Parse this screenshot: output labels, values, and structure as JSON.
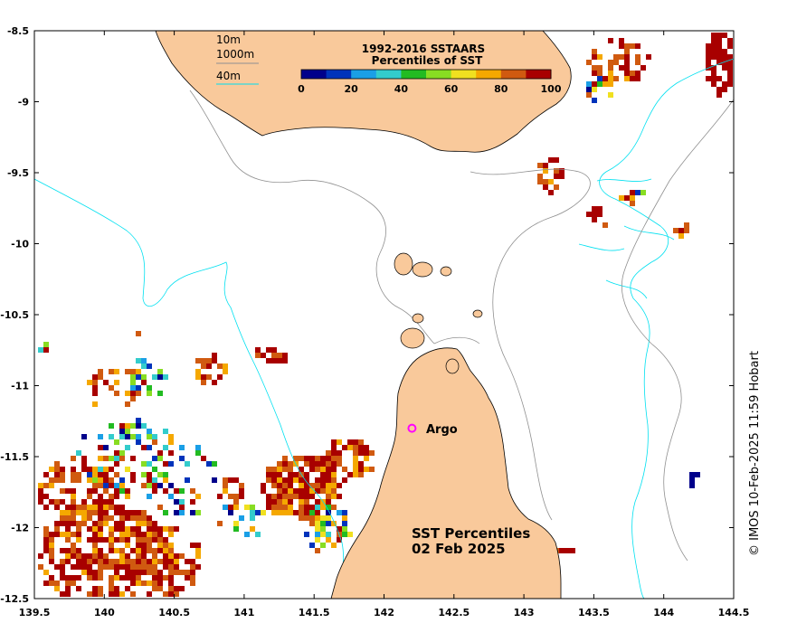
{
  "map": {
    "title_line1": "SST Percentiles",
    "title_line2": "02 Feb 2025",
    "credit": "© IMOS 10-Feb-2025 11:59 Hobart",
    "marker_label": "Argo",
    "colors": {
      "land": "#f9c99b",
      "isobath_10m": "#808080",
      "isobath_1000m": "#808080",
      "isobath_40m": "#00e0f0",
      "coast": "#000000",
      "argo_marker": "#ff00ff"
    },
    "lon_ticks": [
      "139.5",
      "140",
      "140.5",
      "141",
      "141.5",
      "142",
      "142.5",
      "143",
      "143.5",
      "144",
      "144.5"
    ],
    "lat_ticks": [
      "-8.5",
      "-9",
      "-9.5",
      "-10",
      "-10.5",
      "-11",
      "-11.5",
      "-12",
      "-12.5"
    ],
    "lon_range": [
      139.5,
      144.5
    ],
    "lat_range": [
      -12.5,
      -8.5
    ],
    "argo": {
      "lon": 142.2,
      "lat": -11.3
    }
  },
  "legend": {
    "title_line1": "1992-2016 SSTAARS",
    "title_line2": "Percentiles of SST",
    "ticks": [
      "0",
      "20",
      "40",
      "60",
      "80",
      "100"
    ],
    "colors": [
      "#00008b",
      "#0033bb",
      "#1a9fe6",
      "#33cccc",
      "#22bb22",
      "#88dd22",
      "#f0e020",
      "#f5a800",
      "#d05a10",
      "#a80000"
    ],
    "isobaths": [
      "10m",
      "1000m",
      "40m"
    ]
  }
}
